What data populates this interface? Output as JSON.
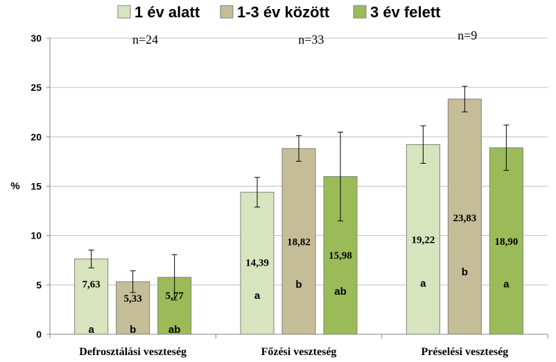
{
  "chart_data": {
    "type": "bar",
    "title": "",
    "xlabel": "",
    "ylabel": "%",
    "ylim": [
      0,
      30
    ],
    "yticks": [
      0,
      5,
      10,
      15,
      20,
      25,
      30
    ],
    "grid": true,
    "legend_position": "top",
    "categories": [
      "Defrosztálási veszteség",
      "Főzési veszteség",
      "Préselési veszteség"
    ],
    "sample_sizes": [
      "n=24",
      "n=33",
      "n=9"
    ],
    "series": [
      {
        "name": "1 év alatt",
        "color": "#d7e4bd",
        "values": [
          7.63,
          14.39,
          19.22
        ],
        "value_labels": [
          "7,63",
          "14,39",
          "19,22"
        ],
        "error": [
          0.9,
          1.5,
          1.9
        ],
        "groups": [
          "a",
          "a",
          "a"
        ]
      },
      {
        "name": "1-3 év között",
        "color": "#c4bd97",
        "values": [
          5.33,
          18.82,
          23.83
        ],
        "value_labels": [
          "5,33",
          "18,82",
          "23,83"
        ],
        "error": [
          1.1,
          1.3,
          1.3
        ],
        "groups": [
          "b",
          "b",
          "b"
        ]
      },
      {
        "name": "3 év felett",
        "color": "#9bbb59",
        "values": [
          5.77,
          15.98,
          18.9
        ],
        "value_labels": [
          "5,77",
          "15,98",
          "18,90"
        ],
        "error": [
          2.3,
          4.5,
          2.3
        ],
        "groups": [
          "ab",
          "ab",
          "a"
        ]
      }
    ]
  }
}
